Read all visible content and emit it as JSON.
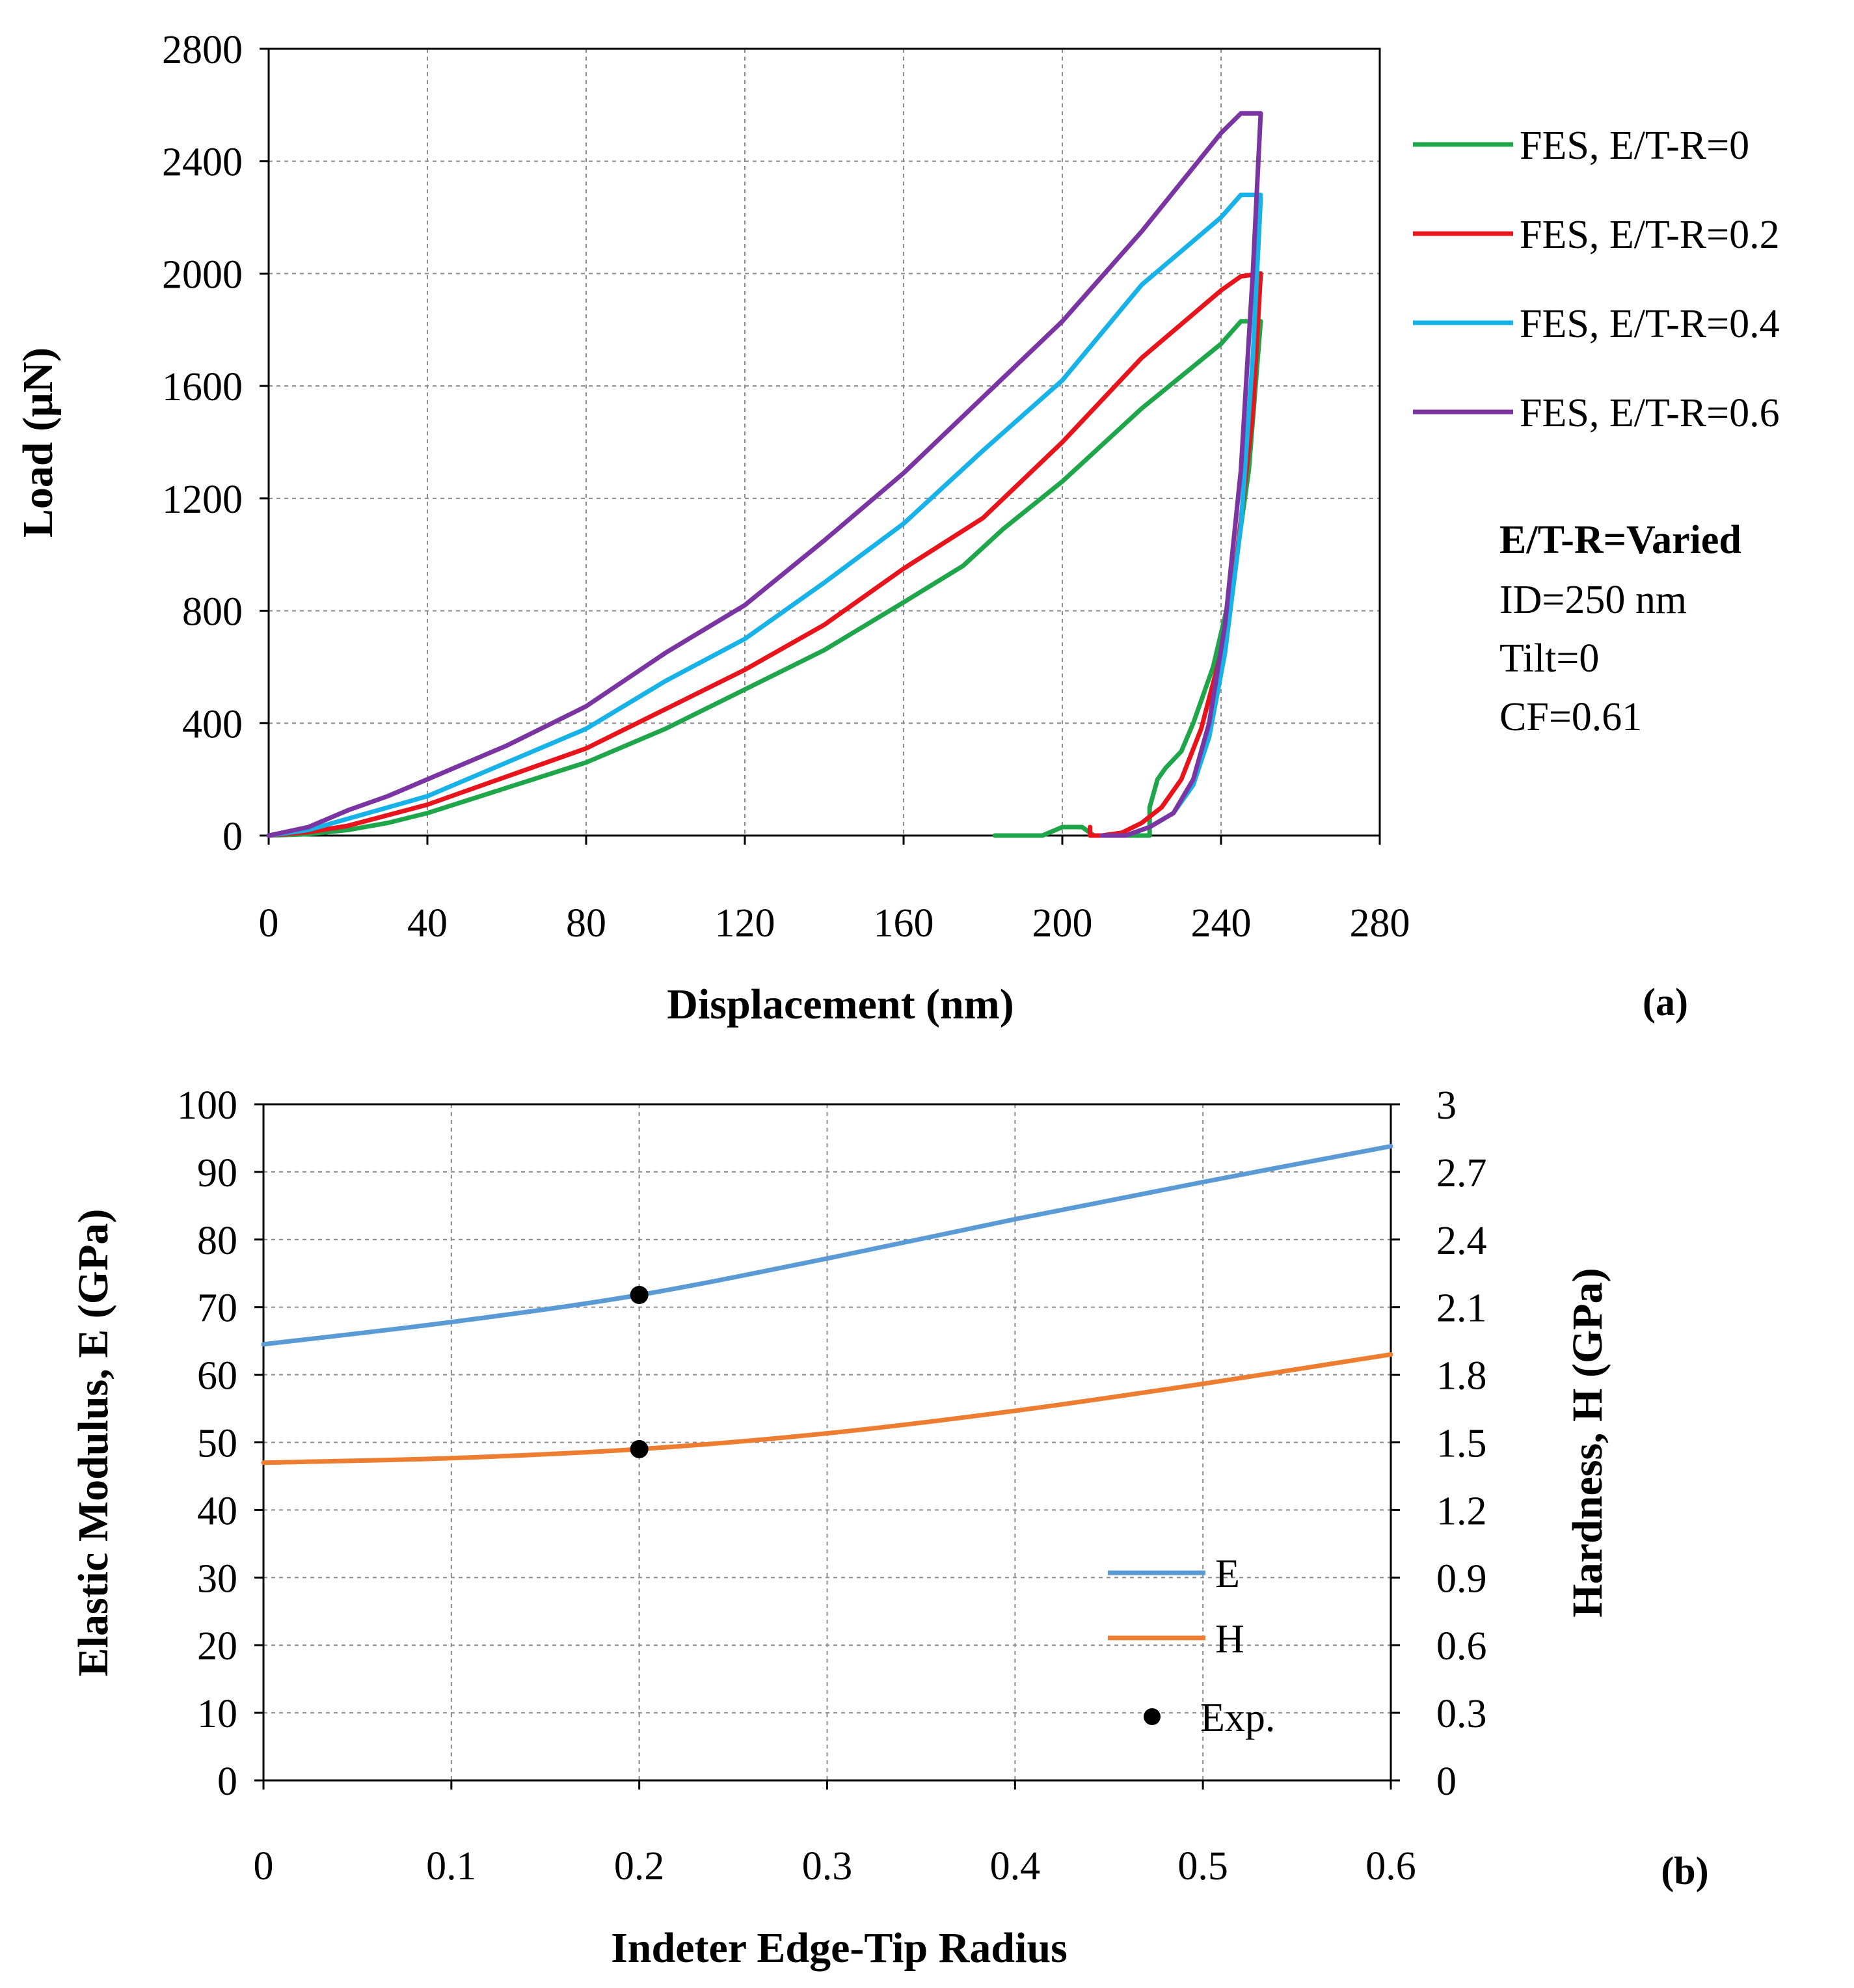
{
  "chart_data": [
    {
      "type": "line",
      "panel_label": "(a)",
      "xlabel": "Displacement (nm)",
      "ylabel": "Load (μN)",
      "xlim": [
        0,
        280
      ],
      "ylim": [
        0,
        2800
      ],
      "x_ticks": [
        "0",
        "40",
        "80",
        "120",
        "160",
        "200",
        "240",
        "280"
      ],
      "y_ticks": [
        "0",
        "400",
        "800",
        "1200",
        "1600",
        "2000",
        "2400",
        "2800"
      ],
      "grid": true,
      "legend_position": "right",
      "annotation": {
        "title": "E/T-R=Varied",
        "lines": [
          "ID=250 nm",
          "Tilt=0",
          "CF=0.61"
        ]
      },
      "series": [
        {
          "name": "FES, E/T-R=0",
          "color": "#1fa64a",
          "loading": [
            [
              0,
              0
            ],
            [
              10,
              5
            ],
            [
              20,
              20
            ],
            [
              30,
              45
            ],
            [
              40,
              80
            ],
            [
              60,
              170
            ],
            [
              80,
              260
            ],
            [
              100,
              380
            ],
            [
              120,
              520
            ],
            [
              140,
              660
            ],
            [
              160,
              830
            ],
            [
              175,
              960
            ],
            [
              185,
              1090
            ],
            [
              200,
              1260
            ],
            [
              220,
              1520
            ],
            [
              240,
              1750
            ],
            [
              245,
              1830
            ],
            [
              250,
              1830
            ]
          ],
          "unloading": [
            [
              250,
              1830
            ],
            [
              247,
              1300
            ],
            [
              243,
              900
            ],
            [
              238,
              600
            ],
            [
              233,
              400
            ],
            [
              230,
              300
            ],
            [
              226,
              240
            ],
            [
              224,
              200
            ],
            [
              222,
              100
            ],
            [
              222,
              0
            ],
            [
              215,
              0
            ],
            [
              208,
              0
            ],
            [
              205,
              30
            ],
            [
              200,
              30
            ],
            [
              195,
              0
            ],
            [
              183,
              0
            ]
          ]
        },
        {
          "name": "FES, E/T-R=0.2",
          "color": "#e8141b",
          "loading": [
            [
              0,
              0
            ],
            [
              10,
              12
            ],
            [
              20,
              35
            ],
            [
              40,
              110
            ],
            [
              60,
              210
            ],
            [
              80,
              310
            ],
            [
              100,
              450
            ],
            [
              120,
              590
            ],
            [
              140,
              750
            ],
            [
              160,
              950
            ],
            [
              180,
              1130
            ],
            [
              200,
              1400
            ],
            [
              220,
              1700
            ],
            [
              240,
              1940
            ],
            [
              245,
              1990
            ],
            [
              250,
              2000
            ]
          ],
          "unloading": [
            [
              250,
              2000
            ],
            [
              248,
              1500
            ],
            [
              244,
              1000
            ],
            [
              240,
              650
            ],
            [
              235,
              380
            ],
            [
              230,
              200
            ],
            [
              225,
              100
            ],
            [
              220,
              45
            ],
            [
              215,
              10
            ],
            [
              210,
              0
            ],
            [
              207,
              0
            ],
            [
              207,
              30
            ]
          ]
        },
        {
          "name": "FES, E/T-R=0.4",
          "color": "#16b2e8",
          "loading": [
            [
              0,
              0
            ],
            [
              10,
              20
            ],
            [
              20,
              60
            ],
            [
              40,
              140
            ],
            [
              60,
              260
            ],
            [
              80,
              380
            ],
            [
              100,
              550
            ],
            [
              120,
              700
            ],
            [
              140,
              900
            ],
            [
              160,
              1110
            ],
            [
              180,
              1370
            ],
            [
              200,
              1620
            ],
            [
              220,
              1960
            ],
            [
              240,
              2200
            ],
            [
              245,
              2280
            ],
            [
              250,
              2280
            ]
          ],
          "unloading": [
            [
              250,
              2270
            ],
            [
              248,
              1700
            ],
            [
              245,
              1100
            ],
            [
              241,
              650
            ],
            [
              237,
              350
            ],
            [
              233,
              180
            ],
            [
              228,
              80
            ],
            [
              222,
              30
            ],
            [
              216,
              0
            ],
            [
              210,
              0
            ]
          ]
        },
        {
          "name": "FES, E/T-R=0.6",
          "color": "#7b35a3",
          "loading": [
            [
              0,
              0
            ],
            [
              10,
              30
            ],
            [
              20,
              90
            ],
            [
              30,
              140
            ],
            [
              40,
              200
            ],
            [
              60,
              320
            ],
            [
              80,
              460
            ],
            [
              100,
              650
            ],
            [
              120,
              820
            ],
            [
              140,
              1050
            ],
            [
              150,
              1170
            ],
            [
              160,
              1290
            ],
            [
              180,
              1560
            ],
            [
              200,
              1830
            ],
            [
              220,
              2150
            ],
            [
              240,
              2500
            ],
            [
              245,
              2570
            ],
            [
              250,
              2570
            ]
          ],
          "unloading": [
            [
              250,
              2570
            ],
            [
              248,
              2000
            ],
            [
              245,
              1300
            ],
            [
              241,
              750
            ],
            [
              237,
              400
            ],
            [
              233,
              200
            ],
            [
              228,
              80
            ],
            [
              222,
              30
            ],
            [
              216,
              0
            ],
            [
              210,
              0
            ]
          ]
        }
      ]
    },
    {
      "type": "line",
      "panel_label": "(b)",
      "xlabel": "Indeter Edge-Tip Radius",
      "ylabel": "Elastic Modulus, E (GPa)",
      "y2label": "Hardness, H (GPa)",
      "xlim": [
        0,
        0.6
      ],
      "ylim": [
        0,
        100
      ],
      "y2lim": [
        0,
        3
      ],
      "x_ticks": [
        "0",
        "0.1",
        "0.2",
        "0.3",
        "0.4",
        "0.5",
        "0.6"
      ],
      "y_ticks": [
        "0",
        "10",
        "20",
        "30",
        "40",
        "50",
        "60",
        "70",
        "80",
        "90",
        "100"
      ],
      "y2_ticks": [
        "0",
        "0.3",
        "0.6",
        "0.9",
        "1.2",
        "1.5",
        "1.8",
        "2.1",
        "2.4",
        "2.7",
        "3"
      ],
      "grid": true,
      "legend_position": "bottom-right",
      "series": [
        {
          "name": "E",
          "axis": "left",
          "color": "#5b9bd5",
          "x": [
            0,
            0.1,
            0.2,
            0.3,
            0.4,
            0.5,
            0.6
          ],
          "y": [
            64.5,
            67.8,
            71.8,
            77.2,
            83.0,
            88.5,
            93.8
          ]
        },
        {
          "name": "H",
          "axis": "right",
          "color": "#ed7d31",
          "x": [
            0,
            0.1,
            0.2,
            0.3,
            0.4,
            0.5,
            0.6
          ],
          "y": [
            1.41,
            1.43,
            1.47,
            1.54,
            1.64,
            1.76,
            1.89
          ]
        },
        {
          "name": "Exp.",
          "type": "scatter",
          "color": "#000000",
          "points": [
            {
              "x": 0.2,
              "y": 71.8,
              "axis": "left"
            },
            {
              "x": 0.2,
              "y": 1.47,
              "axis": "right"
            }
          ]
        }
      ]
    }
  ]
}
